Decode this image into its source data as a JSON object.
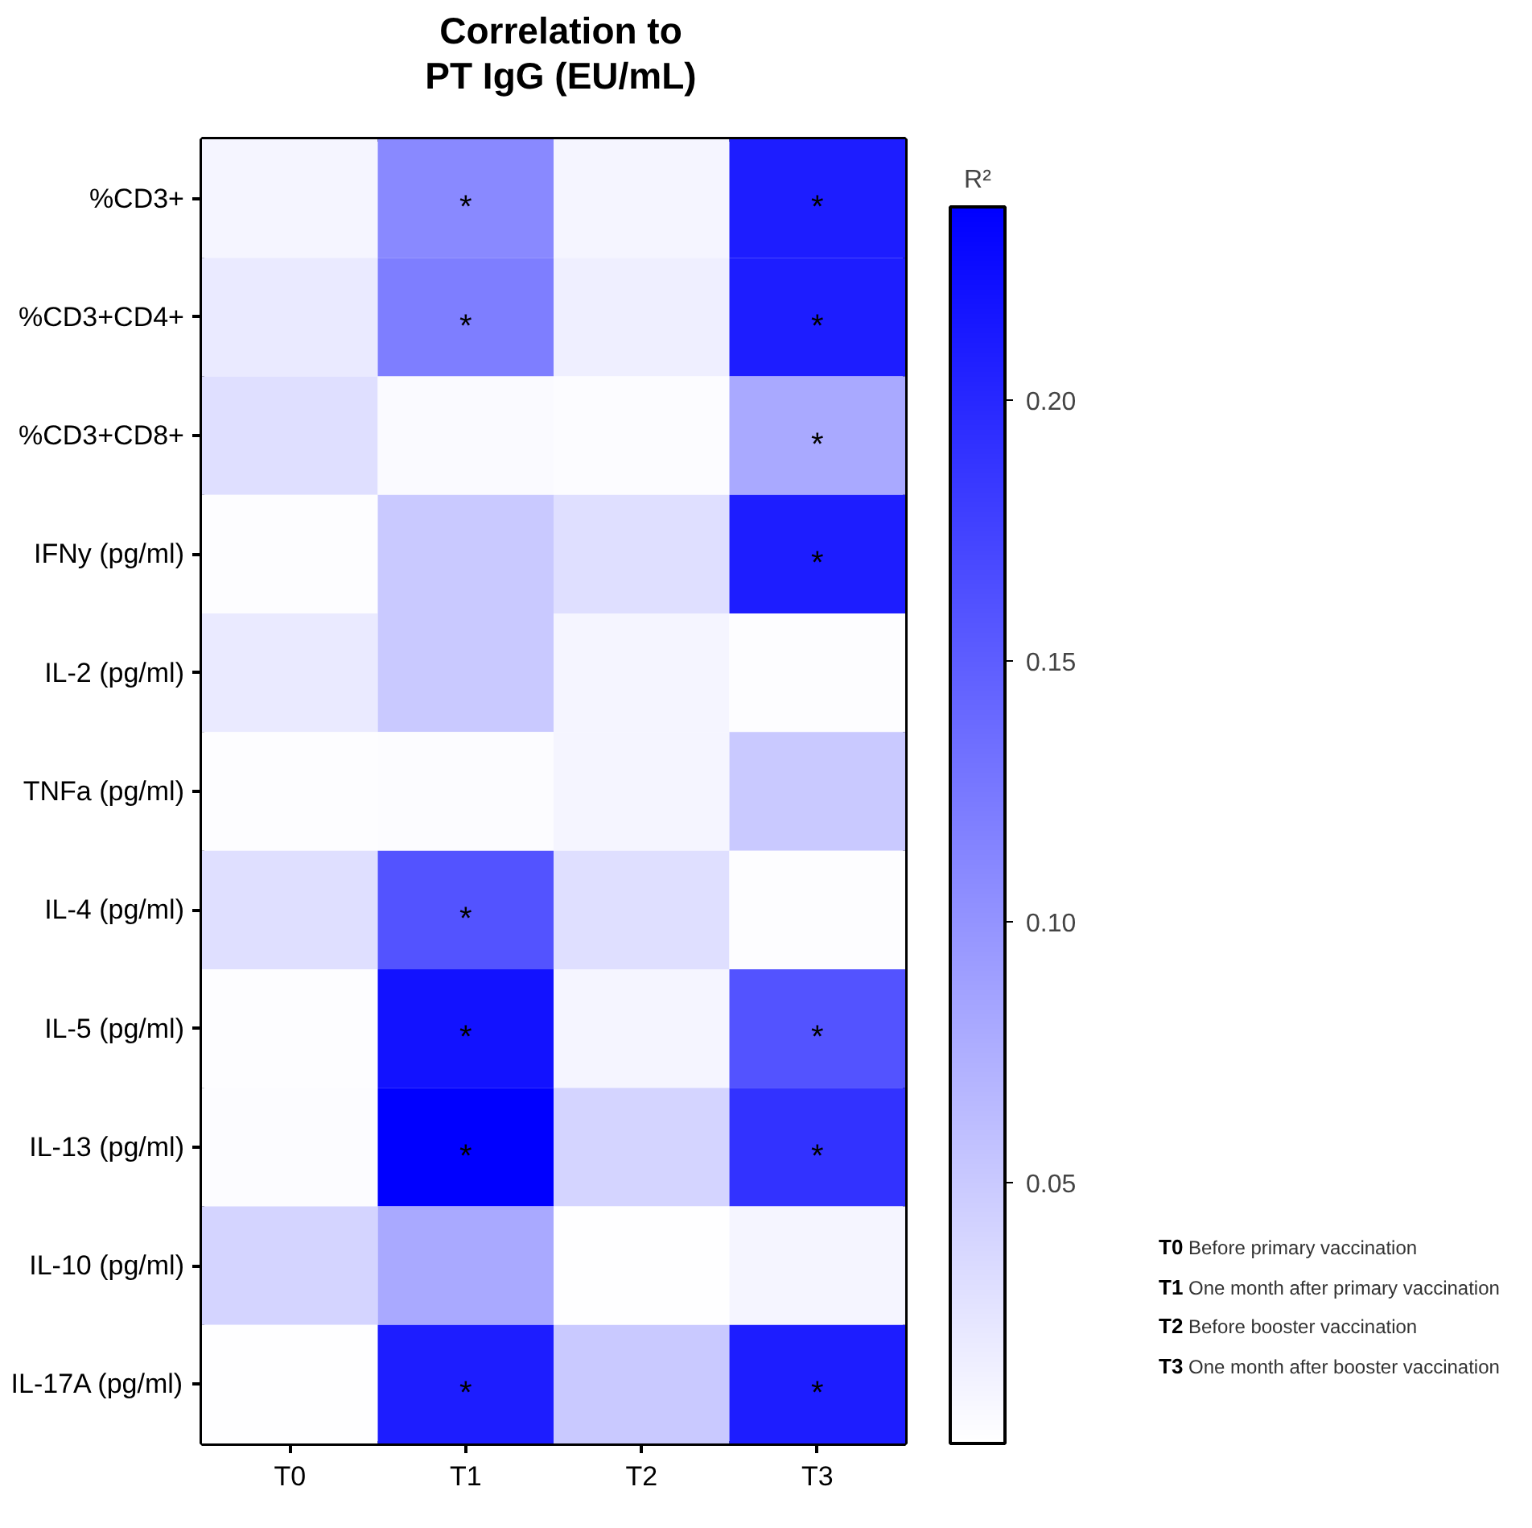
{
  "chart_data": {
    "type": "heatmap",
    "title": "Correlation to\nPT IgG (EU/mL)",
    "clabel": "R²",
    "categories": [
      "T0",
      "T1",
      "T2",
      "T3"
    ],
    "y_categories": [
      "%CD3+",
      "%CD3+CD4+",
      "%CD3+CD8+",
      "IFNy (pg/ml)",
      "IL-2 (pg/ml)",
      "TNFa (pg/ml)",
      "IL-4 (pg/ml)",
      "IL-5 (pg/ml)",
      "IL-13 (pg/ml)",
      "IL-10 (pg/ml)",
      "IL-17A (pg/ml)"
    ],
    "cells": [
      [
        0.01,
        0.11,
        0.01,
        0.21
      ],
      [
        0.02,
        0.12,
        0.015,
        0.21
      ],
      [
        0.03,
        0.005,
        0.003,
        0.08
      ],
      [
        0.002,
        0.05,
        0.03,
        0.21
      ],
      [
        0.02,
        0.05,
        0.01,
        0.002
      ],
      [
        0.002,
        0.003,
        0.01,
        0.05
      ],
      [
        0.03,
        0.16,
        0.03,
        0.002
      ],
      [
        0.002,
        0.22,
        0.01,
        0.16
      ],
      [
        0.003,
        0.237,
        0.04,
        0.19
      ],
      [
        0.04,
        0.08,
        0.001,
        0.01
      ],
      [
        0.001,
        0.21,
        0.05,
        0.21
      ]
    ],
    "cell_labels": [
      [
        null,
        "*",
        null,
        "*"
      ],
      [
        null,
        "*",
        null,
        "*"
      ],
      [
        null,
        null,
        null,
        "*"
      ],
      [
        null,
        null,
        null,
        "*"
      ],
      [
        null,
        null,
        null,
        null
      ],
      [
        null,
        null,
        null,
        null
      ],
      [
        null,
        "*",
        null,
        null
      ],
      [
        null,
        "*",
        null,
        "*"
      ],
      [
        null,
        "*",
        null,
        "*"
      ],
      [
        null,
        null,
        null,
        null
      ],
      [
        null,
        "*",
        null,
        "*"
      ]
    ],
    "clim": [
      0,
      0.237
    ],
    "cticks": [
      {
        "value": 0.05,
        "label": "0.05"
      },
      {
        "value": 0.1,
        "label": "0.10"
      },
      {
        "value": 0.15,
        "label": "0.15"
      },
      {
        "value": 0.2,
        "label": "0.20"
      }
    ],
    "annotations": [
      "T0 Before primary vaccination",
      "T1 One month after primary vaccination",
      "T2 Before booster vaccination",
      "T3 One month after booster vaccination"
    ]
  }
}
